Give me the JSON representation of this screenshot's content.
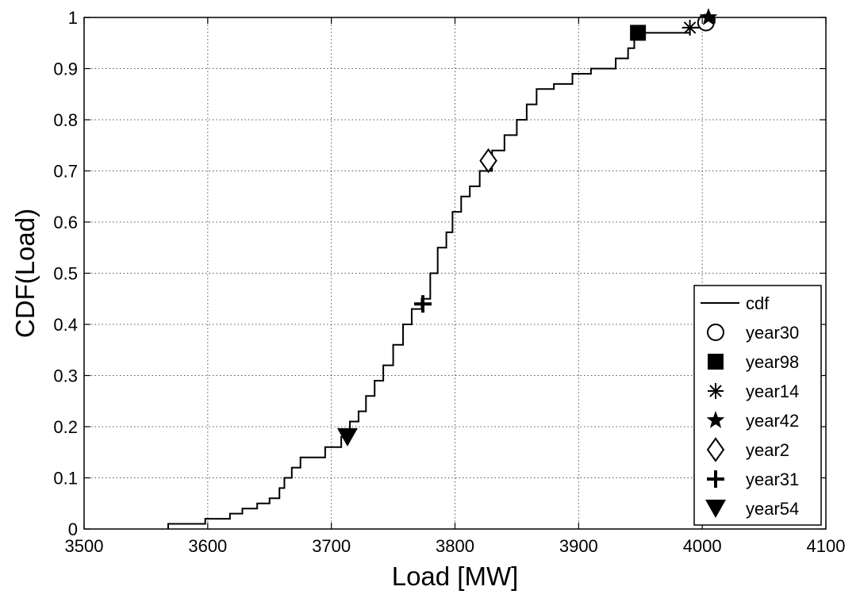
{
  "chart_data": {
    "type": "line",
    "title": "",
    "xlabel": "Load [MW]",
    "ylabel": "CDF(Load)",
    "xlim": [
      3500,
      4100
    ],
    "ylim": [
      0,
      1
    ],
    "x_ticks": [
      3500,
      3600,
      3700,
      3800,
      3900,
      4000,
      4100
    ],
    "y_ticks": [
      0,
      0.1,
      0.2,
      0.3,
      0.4,
      0.5,
      0.6,
      0.7,
      0.8,
      0.9,
      1
    ],
    "x_tick_labels": [
      "3500",
      "3600",
      "3700",
      "3800",
      "3900",
      "4000",
      "4100"
    ],
    "y_tick_labels": [
      "0",
      "0.1",
      "0.2",
      "0.3",
      "0.4",
      "0.5",
      "0.6",
      "0.7",
      "0.8",
      "0.9",
      "1"
    ],
    "grid": true,
    "legend_position": "bottom-right",
    "series": [
      {
        "name": "cdf",
        "style": "step",
        "color": "#000000",
        "x": [
          3568,
          3598,
          3618,
          3628,
          3640,
          3650,
          3658,
          3662,
          3668,
          3675,
          3695,
          3708,
          3715,
          3722,
          3728,
          3735,
          3742,
          3750,
          3758,
          3765,
          3773,
          3780,
          3786,
          3793,
          3798,
          3805,
          3812,
          3820,
          3830,
          3840,
          3850,
          3858,
          3866,
          3880,
          3895,
          3910,
          3930,
          3940,
          3945,
          3950,
          3990,
          4000,
          4010
        ],
        "y": [
          0.01,
          0.02,
          0.03,
          0.04,
          0.05,
          0.06,
          0.08,
          0.1,
          0.12,
          0.14,
          0.16,
          0.18,
          0.21,
          0.23,
          0.26,
          0.29,
          0.32,
          0.36,
          0.4,
          0.43,
          0.45,
          0.5,
          0.55,
          0.58,
          0.62,
          0.65,
          0.67,
          0.7,
          0.74,
          0.77,
          0.8,
          0.83,
          0.86,
          0.87,
          0.89,
          0.9,
          0.92,
          0.94,
          0.96,
          0.97,
          0.98,
          0.99,
          1.0
        ]
      }
    ],
    "markers": [
      {
        "name": "year30",
        "symbol": "circle",
        "x": 4003,
        "y": 0.99
      },
      {
        "name": "year98",
        "symbol": "square",
        "x": 3948,
        "y": 0.97
      },
      {
        "name": "year14",
        "symbol": "asterisk",
        "x": 3990,
        "y": 0.98
      },
      {
        "name": "year42",
        "symbol": "star",
        "x": 4005,
        "y": 1.0
      },
      {
        "name": "year2",
        "symbol": "diamond",
        "x": 3827,
        "y": 0.72
      },
      {
        "name": "year31",
        "symbol": "plus",
        "x": 3774,
        "y": 0.44
      },
      {
        "name": "year54",
        "symbol": "triangle-down",
        "x": 3713,
        "y": 0.18
      }
    ]
  }
}
